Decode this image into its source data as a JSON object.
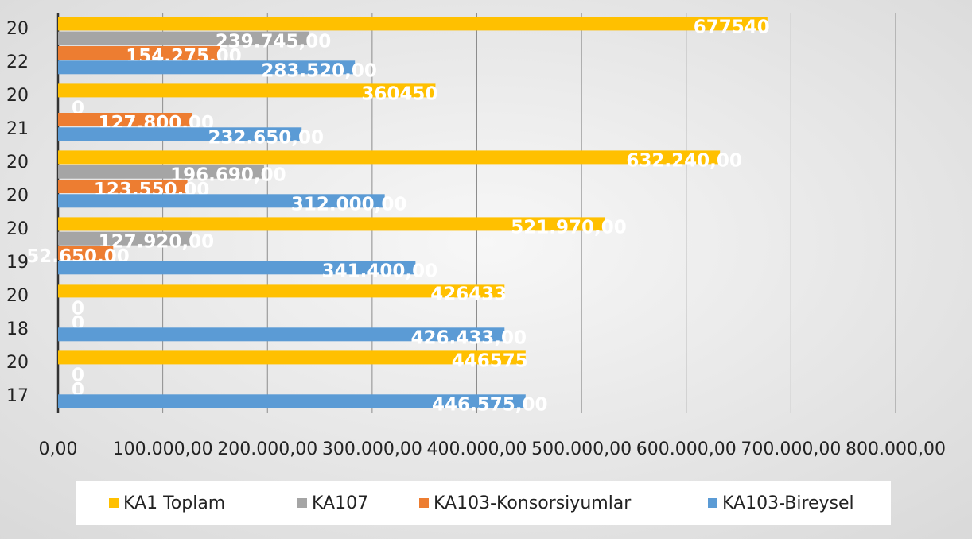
{
  "chart_data": {
    "type": "hbar",
    "categories": [
      "2017",
      "2018",
      "2019",
      "2020",
      "2021",
      "2022"
    ],
    "series": [
      {
        "name": "KA1 Toplam",
        "color": "#ffc000",
        "values": [
          446575,
          426433,
          521970,
          632240,
          360450,
          677540
        ],
        "value_labels": [
          "446575",
          "426433",
          "521.970,00",
          "632.240,00",
          "360450",
          "677540"
        ]
      },
      {
        "name": "KA107",
        "color": "#a5a5a5",
        "values": [
          0,
          0,
          127920,
          196690,
          0,
          239745
        ],
        "value_labels": [
          "0",
          "0",
          "127.920,00",
          "196.690,00",
          "0",
          "239.745,00"
        ]
      },
      {
        "name": "KA103-Konsorsiyumlar",
        "color": "#ed7d31",
        "values": [
          0,
          0,
          52650,
          123550,
          127800,
          154275
        ],
        "value_labels": [
          "0",
          "0",
          "52.650,00",
          "123.550,00",
          "127.800,00",
          "154.275,00"
        ]
      },
      {
        "name": "KA103-Bireysel",
        "color": "#5b9bd5",
        "values": [
          446575,
          426433,
          341400,
          312000,
          232650,
          283520
        ],
        "value_labels": [
          "446.575,00",
          "426.433,00",
          "341.400,00",
          "312.000,00",
          "232.650,00",
          "283.520,00"
        ]
      }
    ],
    "xlim": [
      0,
      800000
    ],
    "xticks": [
      {
        "value": 0,
        "label": "0,00"
      },
      {
        "value": 100000,
        "label": "100.000,00"
      },
      {
        "value": 200000,
        "label": "200.000,00"
      },
      {
        "value": 300000,
        "label": "300.000,00"
      },
      {
        "value": 400000,
        "label": "400.000,00"
      },
      {
        "value": 500000,
        "label": "500.000,00"
      },
      {
        "value": 600000,
        "label": "600.000,00"
      },
      {
        "value": 700000,
        "label": "700.000,00"
      },
      {
        "value": 800000,
        "label": "800.000,00"
      }
    ],
    "grid": true,
    "legend": "bottom"
  }
}
